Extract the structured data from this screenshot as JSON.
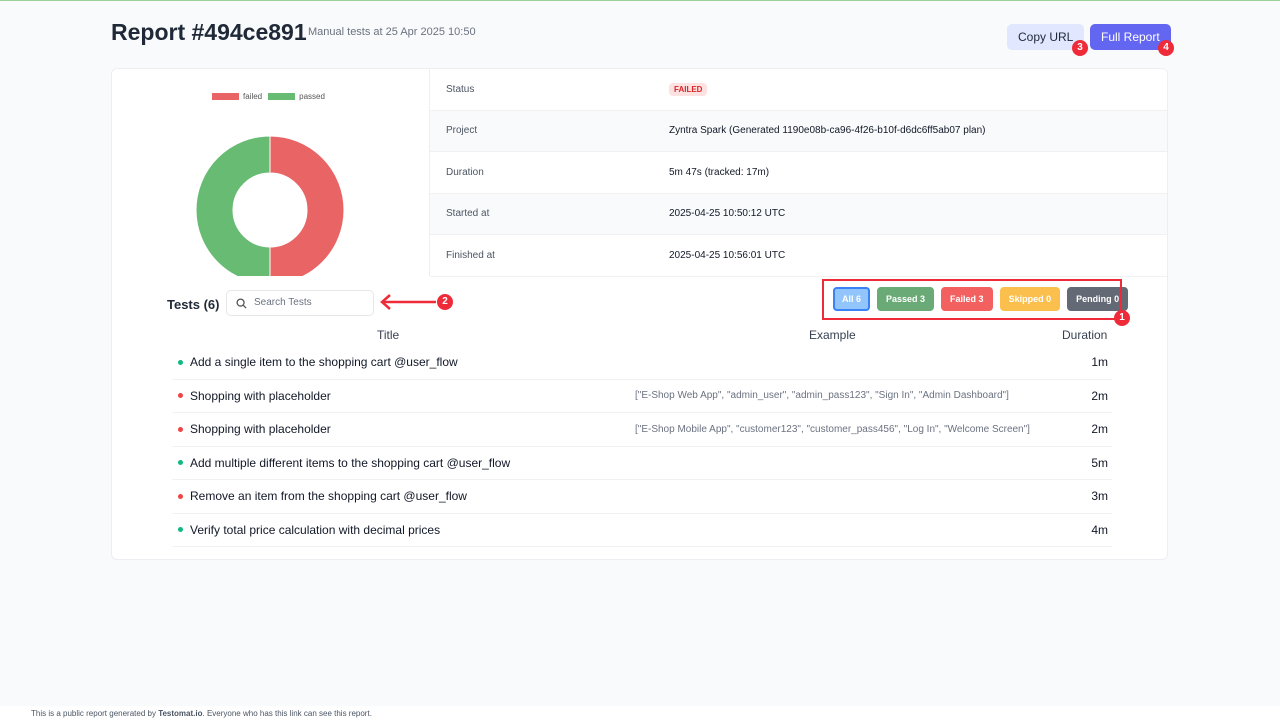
{
  "header": {
    "title": "Report #494ce891",
    "subtitle": "Manual tests at 25 Apr 2025 10:50",
    "copy_url": "Copy URL",
    "full_report": "Full Report"
  },
  "chart_data": {
    "type": "pie",
    "donut": true,
    "categories": [
      "failed",
      "passed"
    ],
    "values": [
      3,
      3
    ],
    "colors": [
      "#e96464",
      "#67bb72"
    ],
    "legend": "top"
  },
  "props": [
    {
      "key": "Status",
      "value": "FAILED",
      "badge": true
    },
    {
      "key": "Project",
      "value": "Zyntra Spark (Generated 1190e08b-ca96-4f26-b10f-d6dc6ff5ab07 plan)"
    },
    {
      "key": "Duration",
      "value": "5m 47s (tracked: 17m)"
    },
    {
      "key": "Started at",
      "value": "2025-04-25 10:50:12 UTC"
    },
    {
      "key": "Finished at",
      "value": "2025-04-25 10:56:01 UTC"
    }
  ],
  "tests": {
    "heading": "Tests (6)",
    "search_placeholder": "Search Tests",
    "filters": [
      {
        "label": "All 6",
        "color": "#93c5fd"
      },
      {
        "label": "Passed 3",
        "color": "#6aaa76"
      },
      {
        "label": "Failed 3",
        "color": "#f26060"
      },
      {
        "label": "Skipped 0",
        "color": "#fbbf4d"
      },
      {
        "label": "Pending 0",
        "color": "#646a75"
      }
    ],
    "columns": {
      "title": "Title",
      "example": "Example",
      "duration": "Duration"
    },
    "rows": [
      {
        "status": "passed",
        "title": "Add a single item to the shopping cart @user_flow",
        "example": "",
        "duration": "1m"
      },
      {
        "status": "failed",
        "title": "Shopping with placeholder",
        "example": "[\"E-Shop Web App\", \"admin_user\", \"admin_pass123\", \"Sign In\", \"Admin Dashboard\"]",
        "duration": "2m"
      },
      {
        "status": "failed",
        "title": "Shopping with placeholder",
        "example": "[\"E-Shop Mobile App\", \"customer123\", \"customer_pass456\", \"Log In\", \"Welcome Screen\"]",
        "duration": "2m"
      },
      {
        "status": "passed",
        "title": "Add multiple different items to the shopping cart @user_flow",
        "example": "",
        "duration": "5m"
      },
      {
        "status": "failed",
        "title": "Remove an item from the shopping cart @user_flow",
        "example": "",
        "duration": "3m"
      },
      {
        "status": "passed",
        "title": "Verify total price calculation with decimal prices",
        "example": "",
        "duration": "4m"
      }
    ]
  },
  "status_colors": {
    "passed": "#10b981",
    "failed": "#ef4444"
  },
  "footer": {
    "pre": "This is a public report generated by ",
    "brand": "Testomat.io",
    "post": ". Everyone who has this link can see this report."
  },
  "annotations": [
    "1",
    "2",
    "3",
    "4"
  ]
}
